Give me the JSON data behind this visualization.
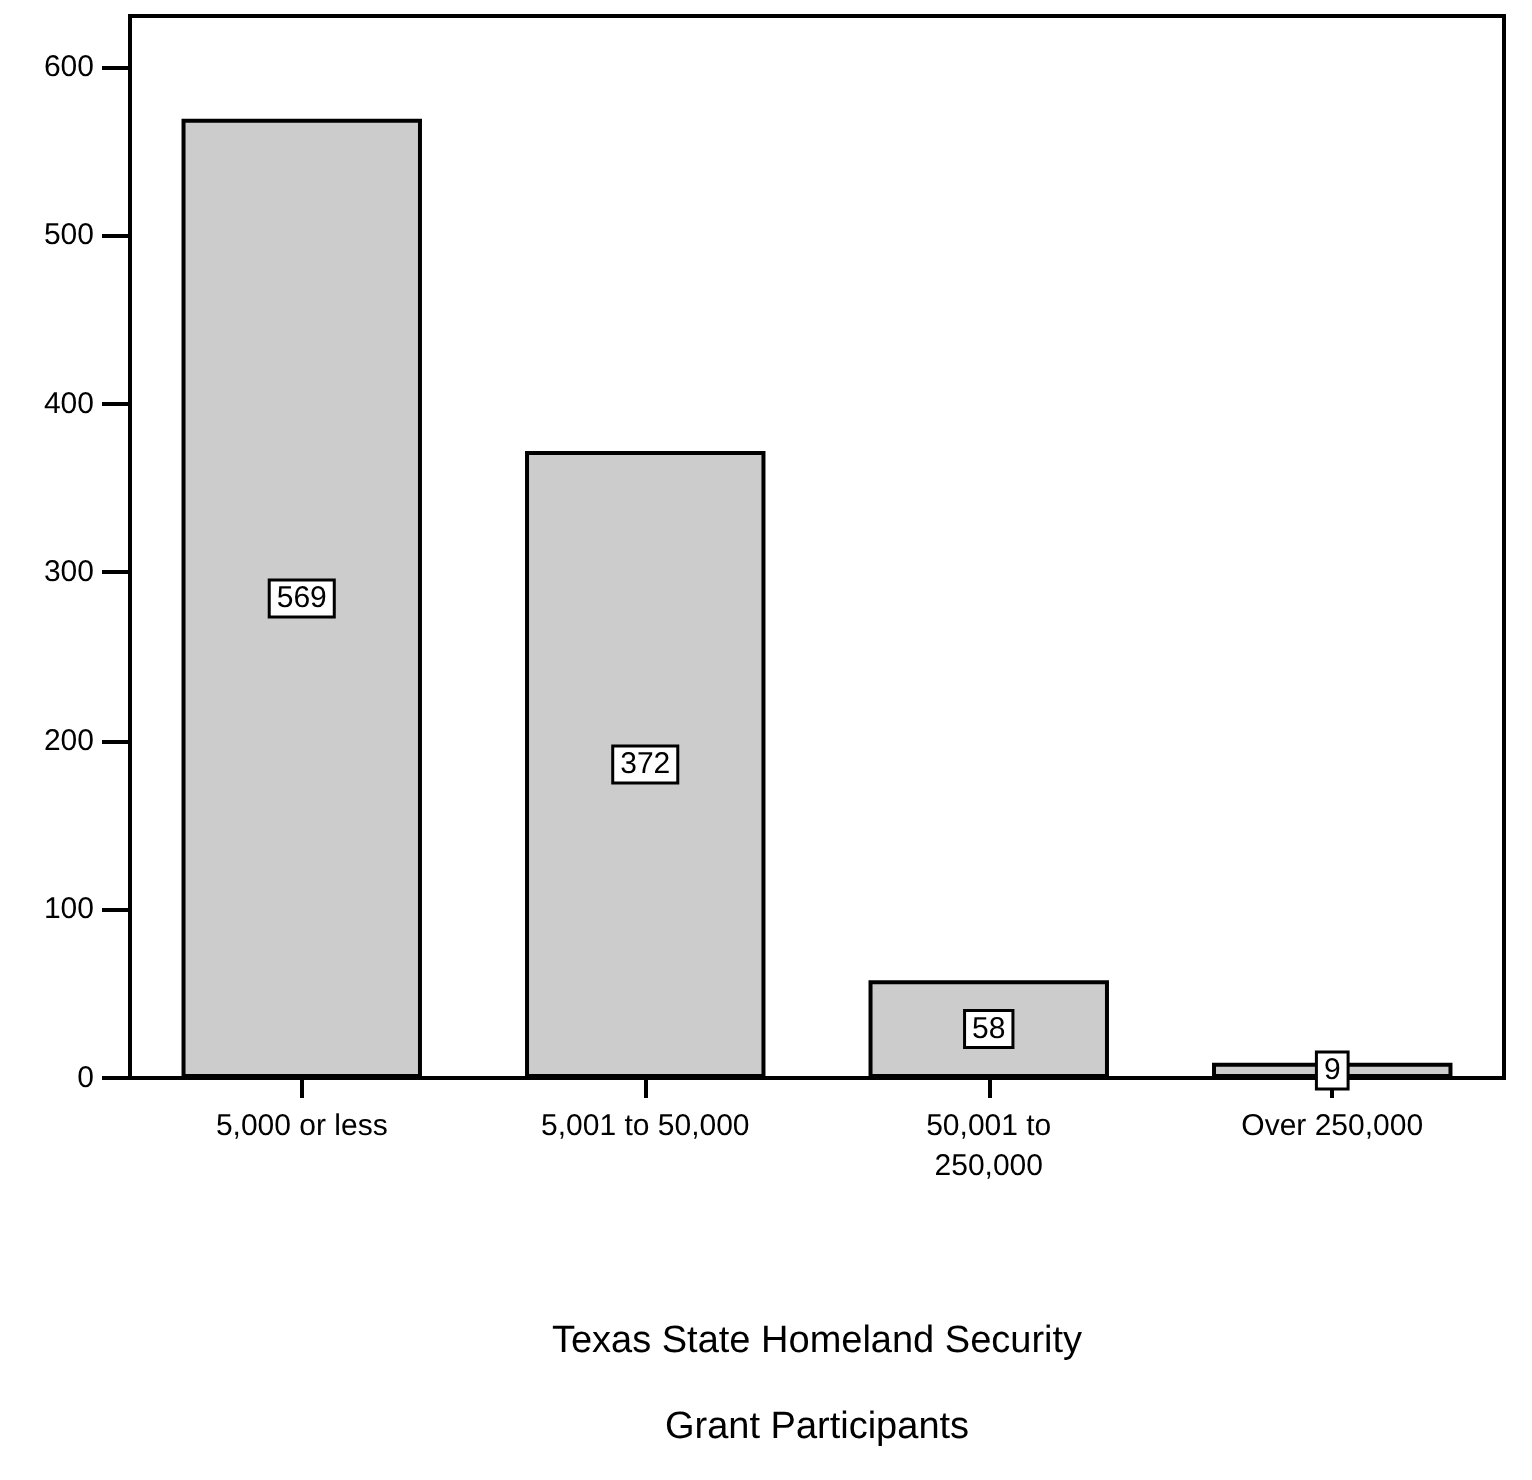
{
  "chart_data": {
    "type": "bar",
    "xlabel": "Texas State Homeland Security\nGrant Participants",
    "categories": [
      "5,000 or less",
      "5,001 to 50,000",
      "50,001 to\n250,000",
      "Over 250,000"
    ],
    "values": [
      569,
      372,
      58,
      9
    ],
    "color": "#cccccc",
    "ylim": [
      0,
      630
    ],
    "yticks": [
      0,
      100,
      200,
      300,
      400,
      500,
      600
    ],
    "data_labels": true,
    "grid": false
  }
}
